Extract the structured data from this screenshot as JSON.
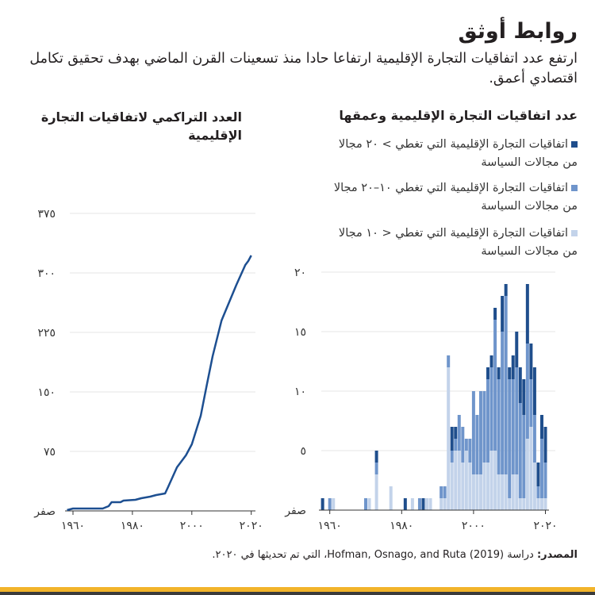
{
  "header": {
    "title": "روابط أوثق",
    "subtitle": "ارتفع عدد اتفاقيات التجارة الإقليمية ارتفاعا حادا منذ تسعينات القرن الماضي بهدف تحقيق تكامل اقتصادي أعمق."
  },
  "colors": {
    "dark": "#1f4e8c",
    "medium": "#6f95cb",
    "light": "#c3d3ea",
    "line": "#1d4f91",
    "grid": "#eeeeee"
  },
  "chart_data": [
    {
      "type": "line",
      "title": "العدد التراكمي لاتفاقيات التجارة الإقليمية",
      "ylim": [
        0,
        375
      ],
      "xlim": [
        1958,
        2020
      ],
      "yticks": [
        {
          "v": 0,
          "label": "صفر"
        },
        {
          "v": 75,
          "label": "٧٥"
        },
        {
          "v": 150,
          "label": "١٥٠"
        },
        {
          "v": 225,
          "label": "٢٢٥"
        },
        {
          "v": 300,
          "label": "٣٠٠"
        },
        {
          "v": 375,
          "label": "٣٧٥"
        }
      ],
      "xticks": [
        {
          "v": 1960,
          "label": "١٩٦٠"
        },
        {
          "v": 1980,
          "label": "١٩٨٠"
        },
        {
          "v": 2000,
          "label": "٢٠٠٠"
        },
        {
          "v": 2020,
          "label": "٢٠٢٠"
        }
      ],
      "x": [
        1958,
        1960,
        1970,
        1972,
        1973,
        1976,
        1977,
        1981,
        1983,
        1986,
        1988,
        1991,
        1992,
        1995,
        1998,
        2000,
        2003,
        2005,
        2007,
        2010,
        2012,
        2015,
        2018,
        2019,
        2020
      ],
      "y": [
        1,
        3,
        3,
        6,
        11,
        11,
        13,
        14,
        16,
        18,
        20,
        22,
        30,
        55,
        70,
        84,
        120,
        158,
        195,
        240,
        258,
        285,
        310,
        315,
        322
      ]
    },
    {
      "type": "bar",
      "stacked": true,
      "title": "عدد اتفاقيات التجارة الإقليمية وعمقها",
      "ylim": [
        0,
        20
      ],
      "yticks": [
        {
          "v": 0,
          "label": "صفر"
        },
        {
          "v": 5,
          "label": "٥"
        },
        {
          "v": 10,
          "label": "١٠"
        },
        {
          "v": 15,
          "label": "١٥"
        },
        {
          "v": 20,
          "label": "٢٠"
        }
      ],
      "xticks": [
        {
          "v": 1960,
          "label": "١٩٦٠"
        },
        {
          "v": 1980,
          "label": "١٩٨٠"
        },
        {
          "v": 2000,
          "label": "٢٠٠٠"
        },
        {
          "v": 2020,
          "label": "٢٠٢٠"
        }
      ],
      "legend": [
        {
          "key": "dark",
          "label": "اتفاقيات التجارة الإقليمية التي تغطي > ٢٠ مجالا من مجالات السياسة"
        },
        {
          "key": "medium",
          "label": "اتفاقيات التجارة الإقليمية التي تغطي ١٠–٢٠ مجالا من مجالات السياسة"
        },
        {
          "key": "light",
          "label": "اتفاقيات التجارة الإقليمية التي تغطي < ١٠ مجالا من مجالات السياسة"
        }
      ],
      "bars": [
        {
          "year": 1958,
          "light": 0,
          "medium": 0,
          "dark": 1
        },
        {
          "year": 1960,
          "light": 0,
          "medium": 1,
          "dark": 0
        },
        {
          "year": 1961,
          "light": 1,
          "medium": 0,
          "dark": 0
        },
        {
          "year": 1970,
          "light": 0,
          "medium": 1,
          "dark": 0
        },
        {
          "year": 1971,
          "light": 1,
          "medium": 0,
          "dark": 0
        },
        {
          "year": 1973,
          "light": 3,
          "medium": 1,
          "dark": 1
        },
        {
          "year": 1977,
          "light": 2,
          "medium": 0,
          "dark": 0
        },
        {
          "year": 1981,
          "light": 0,
          "medium": 0,
          "dark": 1
        },
        {
          "year": 1983,
          "light": 1,
          "medium": 0,
          "dark": 0
        },
        {
          "year": 1985,
          "light": 0,
          "medium": 1,
          "dark": 0
        },
        {
          "year": 1986,
          "light": 0,
          "medium": 0,
          "dark": 1
        },
        {
          "year": 1987,
          "light": 1,
          "medium": 0,
          "dark": 0
        },
        {
          "year": 1988,
          "light": 1,
          "medium": 0,
          "dark": 0
        },
        {
          "year": 1991,
          "light": 1,
          "medium": 1,
          "dark": 0
        },
        {
          "year": 1992,
          "light": 1,
          "medium": 1,
          "dark": 0
        },
        {
          "year": 1993,
          "light": 12,
          "medium": 1,
          "dark": 0
        },
        {
          "year": 1994,
          "light": 4,
          "medium": 1,
          "dark": 2
        },
        {
          "year": 1995,
          "light": 5,
          "medium": 1,
          "dark": 1
        },
        {
          "year": 1996,
          "light": 5,
          "medium": 3,
          "dark": 0
        },
        {
          "year": 1997,
          "light": 4,
          "medium": 3,
          "dark": 0
        },
        {
          "year": 1998,
          "light": 5,
          "medium": 1,
          "dark": 0
        },
        {
          "year": 1999,
          "light": 4,
          "medium": 2,
          "dark": 0
        },
        {
          "year": 2000,
          "light": 3,
          "medium": 7,
          "dark": 0
        },
        {
          "year": 2001,
          "light": 3,
          "medium": 5,
          "dark": 0
        },
        {
          "year": 2002,
          "light": 3,
          "medium": 7,
          "dark": 0
        },
        {
          "year": 2003,
          "light": 4,
          "medium": 6,
          "dark": 0
        },
        {
          "year": 2004,
          "light": 4,
          "medium": 7,
          "dark": 1
        },
        {
          "year": 2005,
          "light": 5,
          "medium": 7,
          "dark": 1
        },
        {
          "year": 2006,
          "light": 5,
          "medium": 11,
          "dark": 1
        },
        {
          "year": 2007,
          "light": 3,
          "medium": 8,
          "dark": 1
        },
        {
          "year": 2008,
          "light": 3,
          "medium": 12,
          "dark": 3
        },
        {
          "year": 2009,
          "light": 3,
          "medium": 15,
          "dark": 1
        },
        {
          "year": 2010,
          "light": 1,
          "medium": 10,
          "dark": 1
        },
        {
          "year": 2011,
          "light": 3,
          "medium": 8,
          "dark": 2
        },
        {
          "year": 2012,
          "light": 3,
          "medium": 9,
          "dark": 3
        },
        {
          "year": 2013,
          "light": 1,
          "medium": 8,
          "dark": 3
        },
        {
          "year": 2014,
          "light": 1,
          "medium": 7,
          "dark": 3
        },
        {
          "year": 2015,
          "light": 6,
          "medium": 8,
          "dark": 5
        },
        {
          "year": 2016,
          "light": 7,
          "medium": 4,
          "dark": 3
        },
        {
          "year": 2017,
          "light": 4,
          "medium": 4,
          "dark": 4
        },
        {
          "year": 2018,
          "light": 1,
          "medium": 1,
          "dark": 2
        },
        {
          "year": 2019,
          "light": 1,
          "medium": 5,
          "dark": 2
        },
        {
          "year": 2020,
          "light": 1,
          "medium": 3,
          "dark": 3
        }
      ]
    }
  ],
  "source": {
    "label": "المصدر:",
    "text": "دراسة Hofman, Osnago, and Ruta (2019)، التي تم تحديثها في ٢٠٢٠."
  }
}
